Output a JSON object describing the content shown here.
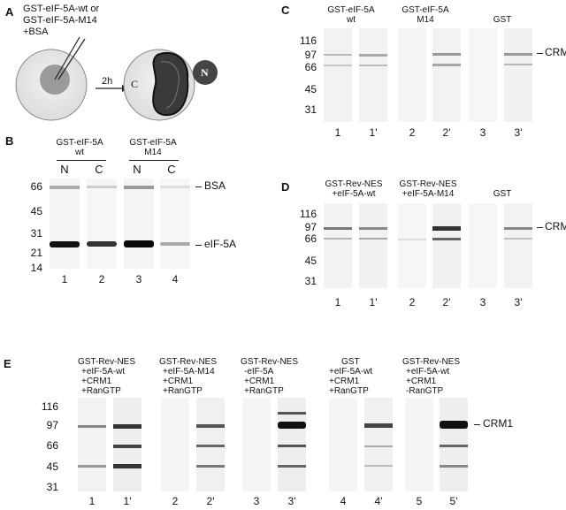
{
  "panelA": {
    "letter": "A",
    "injection_text": [
      "GST-eIF-5A-wt or",
      "GST-eIF-5A-M14",
      "+BSA"
    ],
    "time": "2h",
    "cyto_label": "C",
    "nucleus_label": "N"
  },
  "panelB": {
    "letter": "B",
    "groups": [
      [
        "GST-eIF-5A",
        "wt"
      ],
      [
        "GST-eIF-5A",
        "M14"
      ]
    ],
    "fractions": [
      "N",
      "C",
      "N",
      "C"
    ],
    "markers": [
      "66",
      "45",
      "31",
      "21",
      "14"
    ],
    "band_labels": [
      "BSA",
      "eIF-5A"
    ],
    "lanes": [
      "1",
      "2",
      "3",
      "4"
    ]
  },
  "panelC": {
    "letter": "C",
    "groups": [
      [
        "GST-eIF-5A",
        "wt"
      ],
      [
        "GST-eIF-5A",
        "M14"
      ],
      [
        "GST"
      ]
    ],
    "markers": [
      "116",
      "97",
      "66",
      "45",
      "31"
    ],
    "band_label": "CRM1",
    "lanes": [
      "1",
      "1'",
      "2",
      "2'",
      "3",
      "3'"
    ]
  },
  "panelD": {
    "letter": "D",
    "groups": [
      [
        "GST-Rev-NES",
        "+eIF-5A-wt"
      ],
      [
        "GST-Rev-NES",
        "+eIF-5A-M14"
      ],
      [
        "GST"
      ]
    ],
    "markers": [
      "116",
      "97",
      "66",
      "45",
      "31"
    ],
    "band_label": "CRM1",
    "lanes": [
      "1",
      "1'",
      "2",
      "2'",
      "3",
      "3'"
    ]
  },
  "panelE": {
    "letter": "E",
    "groups": [
      [
        "GST-Rev-NES",
        "+eIF-5A-wt",
        "+CRM1",
        "+RanGTP"
      ],
      [
        "GST-Rev-NES",
        "+eIF-5A-M14",
        "+CRM1",
        "+RanGTP"
      ],
      [
        "GST-Rev-NES",
        "-eIF-5A",
        "+CRM1",
        "+RanGTP"
      ],
      [
        "GST",
        "+eIF-5A-wt",
        "+CRM1",
        "+RanGTP"
      ],
      [
        "GST-Rev-NES",
        "+eIF-5A-wt",
        "+CRM1",
        "-RanGTP"
      ]
    ],
    "markers": [
      "116",
      "97",
      "66",
      "45",
      "31"
    ],
    "band_label": "CRM1",
    "lanes": [
      "1",
      "1'",
      "2",
      "2'",
      "3",
      "3'",
      "4",
      "4'",
      "5",
      "5'"
    ]
  }
}
